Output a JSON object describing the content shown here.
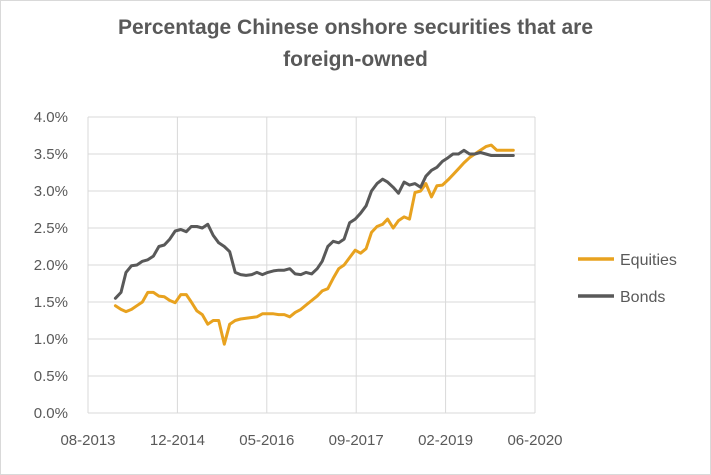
{
  "chart_data": {
    "type": "line",
    "title": "Percentage Chinese onshore securities that are foreign-owned",
    "title_lines": [
      "Percentage Chinese onshore securities that are",
      "foreign-owned"
    ],
    "xlabel": "",
    "ylabel": "",
    "x_tick_labels": [
      "08-2013",
      "12-2014",
      "05-2016",
      "09-2017",
      "02-2019",
      "06-2020"
    ],
    "y_tick_labels": [
      "0.0%",
      "0.5%",
      "1.0%",
      "1.5%",
      "2.0%",
      "2.5%",
      "3.0%",
      "3.5%",
      "4.0%"
    ],
    "ylim": [
      0,
      4.0
    ],
    "y_unit": "%",
    "grid": true,
    "legend_position": "right",
    "series": [
      {
        "name": "Equities",
        "color": "#e8a21f",
        "x": [
          "2014-01",
          "2014-02",
          "2014-03",
          "2014-04",
          "2014-05",
          "2014-06",
          "2014-07",
          "2014-08",
          "2014-09",
          "2014-10",
          "2014-11",
          "2014-12",
          "2015-01",
          "2015-02",
          "2015-03",
          "2015-04",
          "2015-05",
          "2015-06",
          "2015-07",
          "2015-08",
          "2015-09",
          "2015-10",
          "2015-11",
          "2015-12",
          "2016-01",
          "2016-02",
          "2016-03",
          "2016-04",
          "2016-05",
          "2016-06",
          "2016-07",
          "2016-08",
          "2016-09",
          "2016-10",
          "2016-11",
          "2016-12",
          "2017-01",
          "2017-02",
          "2017-03",
          "2017-04",
          "2017-05",
          "2017-06",
          "2017-07",
          "2017-08",
          "2017-09",
          "2017-10",
          "2017-11",
          "2017-12",
          "2018-01",
          "2018-02",
          "2018-03",
          "2018-04",
          "2018-05",
          "2018-06",
          "2018-07",
          "2018-08",
          "2018-09",
          "2018-10",
          "2018-11",
          "2018-12",
          "2019-01",
          "2019-02",
          "2019-03",
          "2019-04",
          "2019-05",
          "2019-06",
          "2019-07",
          "2019-08",
          "2019-09",
          "2019-10",
          "2019-11",
          "2019-12",
          "2020-01",
          "2020-02"
        ],
        "values": [
          1.45,
          1.4,
          1.37,
          1.4,
          1.45,
          1.5,
          1.63,
          1.63,
          1.58,
          1.57,
          1.52,
          1.49,
          1.6,
          1.6,
          1.5,
          1.38,
          1.33,
          1.2,
          1.25,
          1.25,
          0.93,
          1.2,
          1.25,
          1.27,
          1.28,
          1.29,
          1.3,
          1.34,
          1.34,
          1.34,
          1.33,
          1.33,
          1.3,
          1.36,
          1.4,
          1.46,
          1.52,
          1.58,
          1.65,
          1.68,
          1.82,
          1.95,
          2.0,
          2.1,
          2.2,
          2.16,
          2.22,
          2.44,
          2.52,
          2.55,
          2.62,
          2.5,
          2.6,
          2.65,
          2.62,
          2.98,
          3.0,
          3.1,
          2.92,
          3.07,
          3.08,
          3.15,
          3.22,
          3.3,
          3.38,
          3.45,
          3.5,
          3.55,
          3.6,
          3.62,
          3.55,
          3.55,
          3.55,
          3.55
        ]
      },
      {
        "name": "Bonds",
        "color": "#595959",
        "x": [
          "2014-01",
          "2014-02",
          "2014-03",
          "2014-04",
          "2014-05",
          "2014-06",
          "2014-07",
          "2014-08",
          "2014-09",
          "2014-10",
          "2014-11",
          "2014-12",
          "2015-01",
          "2015-02",
          "2015-03",
          "2015-04",
          "2015-05",
          "2015-06",
          "2015-07",
          "2015-08",
          "2015-09",
          "2015-10",
          "2015-11",
          "2015-12",
          "2016-01",
          "2016-02",
          "2016-03",
          "2016-04",
          "2016-05",
          "2016-06",
          "2016-07",
          "2016-08",
          "2016-09",
          "2016-10",
          "2016-11",
          "2016-12",
          "2017-01",
          "2017-02",
          "2017-03",
          "2017-04",
          "2017-05",
          "2017-06",
          "2017-07",
          "2017-08",
          "2017-09",
          "2017-10",
          "2017-11",
          "2017-12",
          "2018-01",
          "2018-02",
          "2018-03",
          "2018-04",
          "2018-05",
          "2018-06",
          "2018-07",
          "2018-08",
          "2018-09",
          "2018-10",
          "2018-11",
          "2018-12",
          "2019-01",
          "2019-02",
          "2019-03",
          "2019-04",
          "2019-05",
          "2019-06",
          "2019-07",
          "2019-08",
          "2019-09",
          "2019-10",
          "2019-11",
          "2019-12",
          "2020-01",
          "2020-02"
        ],
        "values": [
          1.55,
          1.63,
          1.9,
          1.99,
          2.0,
          2.05,
          2.07,
          2.12,
          2.25,
          2.27,
          2.35,
          2.46,
          2.48,
          2.45,
          2.52,
          2.52,
          2.5,
          2.55,
          2.4,
          2.3,
          2.25,
          2.18,
          1.9,
          1.87,
          1.86,
          1.87,
          1.9,
          1.87,
          1.9,
          1.92,
          1.93,
          1.93,
          1.95,
          1.88,
          1.87,
          1.9,
          1.88,
          1.95,
          2.05,
          2.25,
          2.32,
          2.3,
          2.35,
          2.57,
          2.62,
          2.7,
          2.8,
          3.0,
          3.1,
          3.16,
          3.12,
          3.05,
          2.97,
          3.12,
          3.08,
          3.1,
          3.05,
          3.2,
          3.28,
          3.32,
          3.4,
          3.45,
          3.5,
          3.5,
          3.55,
          3.5,
          3.5,
          3.52,
          3.5,
          3.48,
          3.48,
          3.48,
          3.48,
          3.48
        ]
      }
    ]
  }
}
